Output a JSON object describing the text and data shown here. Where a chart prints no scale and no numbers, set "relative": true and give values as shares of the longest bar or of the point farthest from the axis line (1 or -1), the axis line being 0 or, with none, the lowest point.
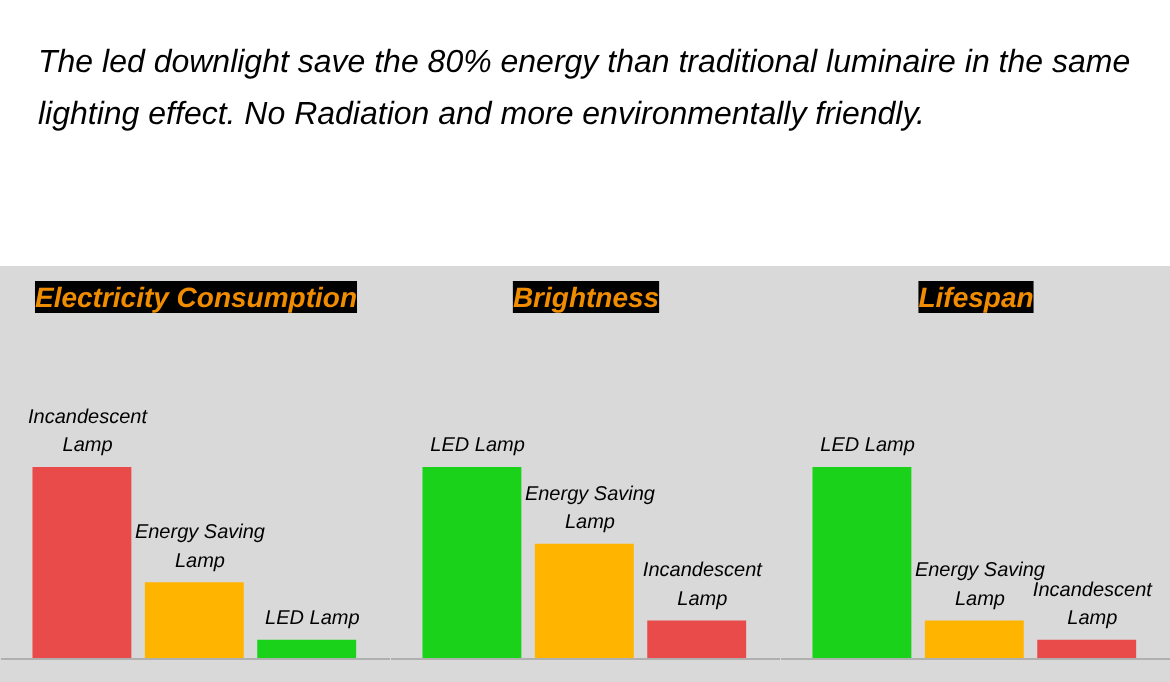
{
  "chart_data": [
    {
      "type": "other",
      "annotations": [
        "The led downlight save the 80% energy than traditional luminaire in the same lighting effect. No Radiation and more environmentally friendly."
      ]
    },
    {
      "type": "bar",
      "title": "Electricity Consumption",
      "categories": [
        "Incandescent Lamp",
        "Energy Saving Lamp",
        "LED Lamp"
      ],
      "values": [
        1,
        0.4,
        0.1
      ],
      "colors": [
        "#e94b4b",
        "#ffb400",
        "#19d219"
      ],
      "relative": true,
      "grid": false,
      "legend": false
    },
    {
      "type": "bar",
      "title": "Brightness",
      "categories": [
        "LED Lamp",
        "Energy Saving Lamp",
        "Incandescent Lamp"
      ],
      "values": [
        1,
        0.6,
        0.2
      ],
      "colors": [
        "#19d219",
        "#ffb400",
        "#e94b4b"
      ],
      "relative": true,
      "grid": false,
      "legend": false
    },
    {
      "type": "bar",
      "title": "Lifespan",
      "categories": [
        "LED Lamp",
        "Energy Saving Lamp",
        "Incandescent Lamp"
      ],
      "values": [
        1,
        0.2,
        0.1
      ],
      "colors": [
        "#19d219",
        "#ffb400",
        "#e94b4b"
      ],
      "relative": true,
      "grid": false,
      "legend": false
    }
  ]
}
